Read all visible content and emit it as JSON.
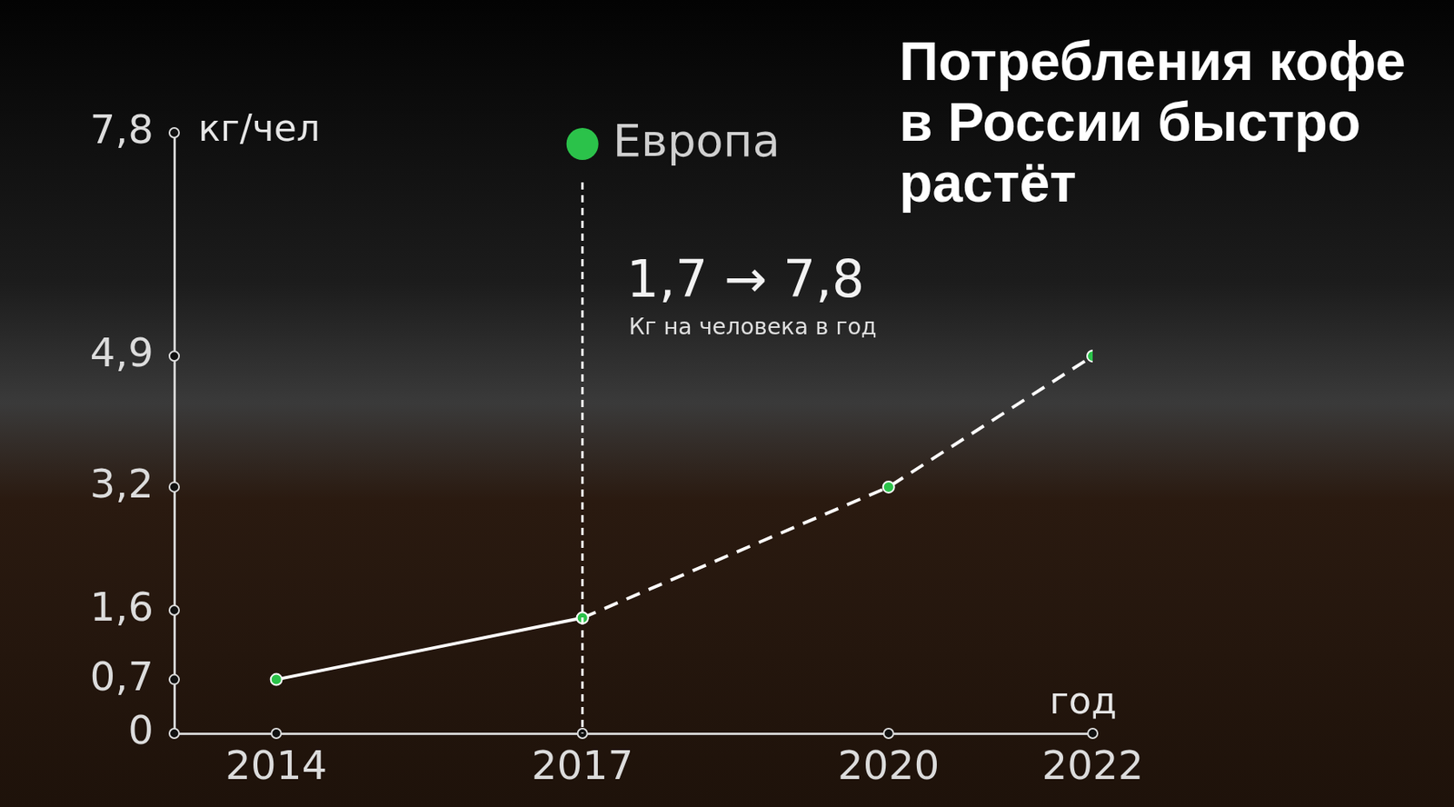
{
  "chart_data": {
    "type": "line",
    "title": "Потребления кофе в России быстро растёт",
    "x_label": "год",
    "y_label": "кг/чел",
    "x": [
      2014,
      2017,
      2020,
      2022
    ],
    "series": [
      {
        "values": [
          0.7,
          1.5,
          null,
          null
        ],
        "color": "#ffffff",
        "line_style": "solid",
        "marker": "circle"
      },
      {
        "values": [
          null,
          1.5,
          3.2,
          4.9
        ],
        "color": "#ffffff",
        "line_style": "dashed",
        "marker": "circle"
      }
    ],
    "xlim": [
      2013,
      2022
    ],
    "xticks": [
      2014,
      2017,
      2020,
      2022
    ],
    "ylim": [
      0,
      7.8
    ],
    "yticks": [
      0,
      {
        "value": 0.7,
        "label": "0,7"
      },
      {
        "value": 1.6,
        "label": "1,6"
      },
      {
        "value": 3.2,
        "label": "3,2"
      },
      {
        "value": 4.9,
        "label": "4,9"
      },
      {
        "value": 7.8,
        "label": "7,8"
      }
    ],
    "grid": false,
    "annotations": [
      {
        "text": "Европа",
        "x": 2017,
        "color": "#2bc24a"
      },
      {
        "text": "1,7 → 7,8"
      },
      {
        "text": "Кг на человека в год"
      }
    ]
  }
}
